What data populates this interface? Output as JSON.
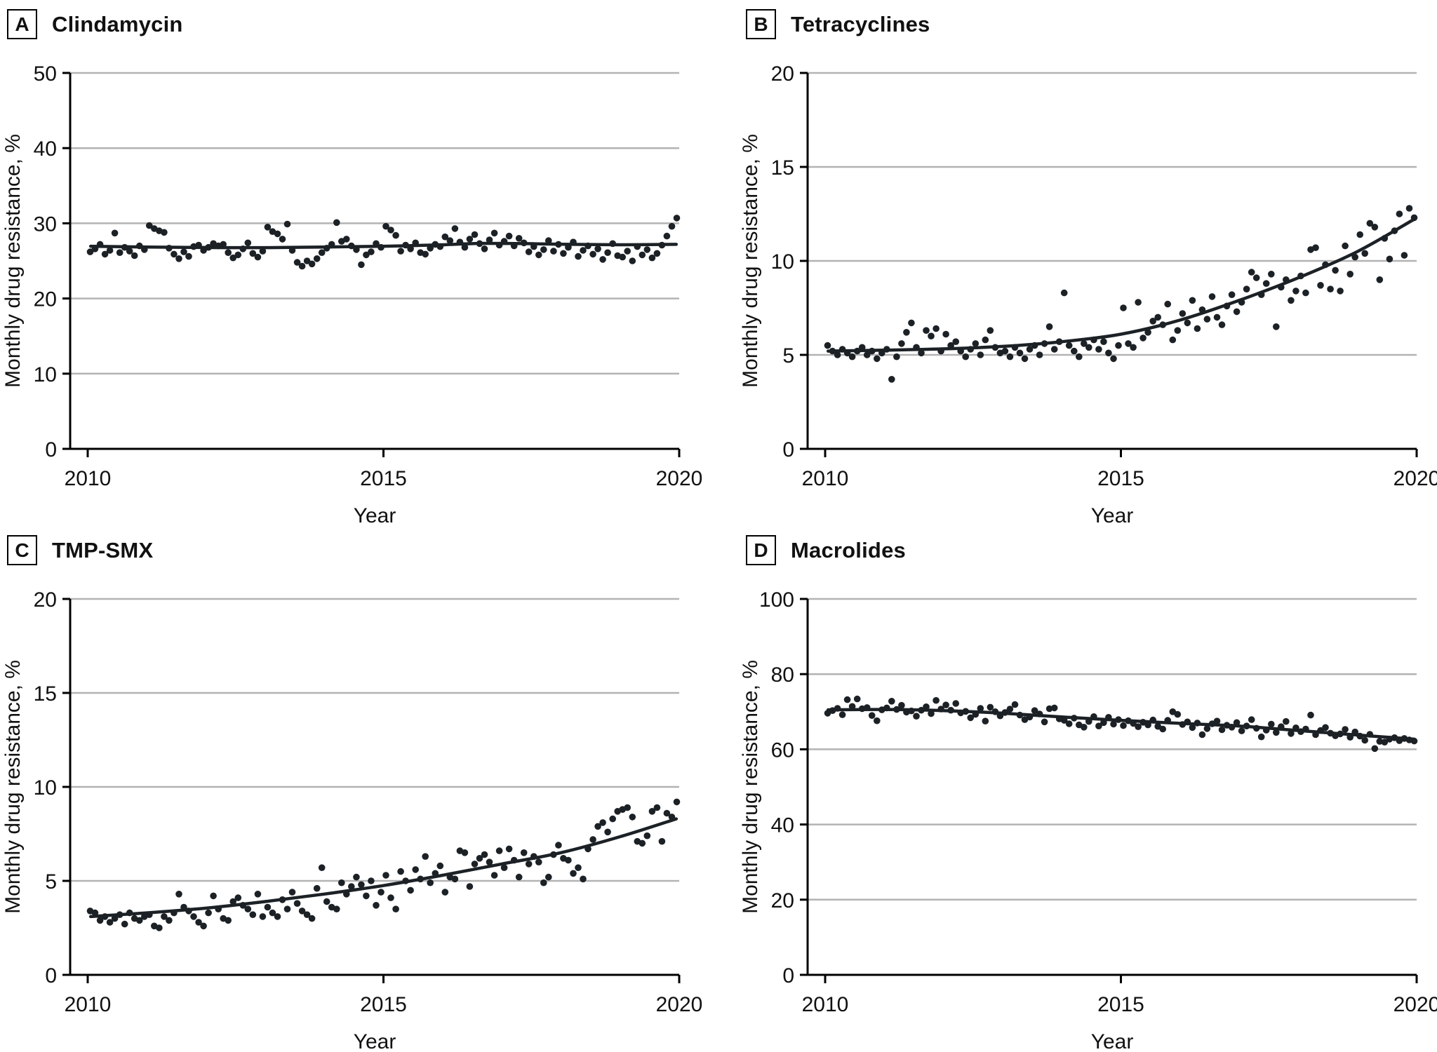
{
  "figure_xlabel": "Year",
  "colors": {
    "point": "#1c2126",
    "trend": "#1c2126",
    "grid": "#b3b3b3",
    "axis": "#000000",
    "text": "#111111"
  },
  "chart_data": [
    {
      "panel_label": "A",
      "title": "Clindamycin",
      "type": "scatter",
      "xlabel": "Year",
      "ylabel": "Monthly drug resistance, %",
      "xlim": [
        2010,
        2020
      ],
      "ylim": [
        0,
        50
      ],
      "yticks": [
        0,
        10,
        20,
        30,
        40,
        50
      ],
      "xticks": [
        2010,
        2015,
        2020
      ],
      "x_start": 2010,
      "x_step_months": 1,
      "values": [
        26.2,
        26.6,
        27.2,
        25.9,
        26.4,
        28.7,
        26.1,
        26.8,
        26.3,
        25.7,
        27.0,
        26.5,
        29.7,
        29.3,
        29.0,
        28.8,
        26.7,
        25.9,
        25.3,
        26.2,
        25.6,
        26.9,
        27.1,
        26.4,
        26.8,
        27.3,
        27.0,
        27.2,
        26.1,
        25.4,
        25.8,
        26.6,
        27.4,
        26.0,
        25.5,
        26.3,
        29.5,
        28.9,
        28.6,
        27.9,
        29.9,
        26.4,
        24.8,
        24.3,
        25.0,
        24.6,
        25.3,
        26.1,
        26.7,
        27.2,
        30.1,
        27.6,
        27.9,
        27.0,
        26.5,
        24.5,
        25.8,
        26.2,
        27.3,
        26.8,
        29.6,
        29.1,
        28.4,
        26.3,
        27.1,
        26.6,
        27.4,
        26.1,
        25.9,
        26.7,
        27.2,
        26.9,
        28.2,
        27.7,
        29.3,
        27.5,
        26.8,
        27.9,
        28.5,
        27.3,
        26.6,
        27.8,
        28.7,
        27.1,
        27.6,
        28.3,
        27.0,
        28.0,
        27.4,
        26.2,
        26.9,
        25.8,
        26.5,
        27.7,
        26.3,
        27.2,
        26.0,
        26.8,
        27.5,
        25.6,
        26.4,
        27.0,
        25.9,
        26.6,
        25.2,
        26.1,
        27.3,
        25.7,
        25.5,
        26.3,
        25.0,
        26.9,
        25.8,
        26.5,
        25.4,
        26.0,
        27.1,
        28.3,
        29.6,
        30.7
      ],
      "trend": [
        [
          2010.05,
          26.95
        ],
        [
          2011,
          26.85
        ],
        [
          2012,
          26.78
        ],
        [
          2013,
          26.76
        ],
        [
          2014,
          26.85
        ],
        [
          2015,
          26.95
        ],
        [
          2016,
          27.15
        ],
        [
          2016.6,
          27.32
        ],
        [
          2017.3,
          27.3
        ],
        [
          2018,
          27.22
        ],
        [
          2019,
          27.15
        ],
        [
          2019.95,
          27.2
        ]
      ]
    },
    {
      "panel_label": "B",
      "title": "Tetracyclines",
      "type": "scatter",
      "xlabel": "Year",
      "ylabel": "Monthly drug resistance, %",
      "xlim": [
        2010,
        2020
      ],
      "ylim": [
        0,
        20
      ],
      "yticks": [
        0,
        5,
        10,
        15,
        20
      ],
      "xticks": [
        2010,
        2015,
        2020
      ],
      "x_start": 2010,
      "x_step_months": 1,
      "values": [
        5.5,
        5.2,
        5.0,
        5.3,
        5.1,
        4.9,
        5.2,
        5.4,
        5.0,
        5.2,
        4.8,
        5.1,
        5.3,
        3.7,
        4.9,
        5.6,
        6.2,
        6.7,
        5.4,
        5.1,
        6.3,
        6.0,
        6.4,
        5.2,
        6.1,
        5.5,
        5.7,
        5.2,
        4.9,
        5.3,
        5.6,
        5.0,
        5.8,
        6.3,
        5.4,
        5.1,
        5.2,
        4.9,
        5.4,
        5.1,
        4.8,
        5.3,
        5.5,
        5.0,
        5.6,
        6.5,
        5.3,
        5.7,
        8.3,
        5.5,
        5.2,
        4.9,
        5.6,
        5.4,
        5.8,
        5.3,
        5.7,
        5.1,
        4.8,
        5.5,
        7.5,
        5.6,
        5.4,
        7.8,
        5.9,
        6.2,
        6.8,
        7.0,
        6.6,
        7.7,
        5.8,
        6.3,
        7.2,
        6.7,
        7.9,
        6.4,
        7.4,
        6.9,
        8.1,
        7.0,
        6.6,
        7.6,
        8.2,
        7.3,
        7.8,
        8.5,
        9.4,
        9.1,
        8.2,
        8.8,
        9.3,
        6.5,
        8.6,
        9.0,
        7.9,
        8.4,
        9.2,
        8.3,
        10.6,
        10.7,
        8.7,
        9.8,
        8.5,
        9.5,
        8.4,
        10.8,
        9.3,
        10.2,
        11.4,
        10.4,
        12.0,
        11.8,
        9.0,
        11.2,
        10.1,
        11.6,
        12.5,
        10.3,
        12.8,
        12.3
      ],
      "trend": [
        [
          2010.05,
          5.2
        ],
        [
          2011,
          5.25
        ],
        [
          2012,
          5.32
        ],
        [
          2013,
          5.45
        ],
        [
          2014,
          5.7
        ],
        [
          2015,
          6.1
        ],
        [
          2016,
          6.85
        ],
        [
          2017,
          7.9
        ],
        [
          2018,
          9.1
        ],
        [
          2019,
          10.5
        ],
        [
          2019.95,
          12.2
        ]
      ]
    },
    {
      "panel_label": "C",
      "title": "TMP-SMX",
      "type": "scatter",
      "xlabel": "Year",
      "ylabel": "Monthly drug resistance, %",
      "xlim": [
        2010,
        2020
      ],
      "ylim": [
        0,
        20
      ],
      "yticks": [
        0,
        5,
        10,
        15,
        20
      ],
      "xticks": [
        2010,
        2015,
        2020
      ],
      "x_start": 2010,
      "x_step_months": 1,
      "values": [
        3.4,
        3.3,
        2.9,
        3.1,
        2.8,
        3.0,
        3.2,
        2.7,
        3.3,
        3.0,
        2.9,
        3.1,
        3.2,
        2.6,
        2.5,
        3.1,
        2.9,
        3.3,
        4.3,
        3.6,
        3.4,
        3.1,
        2.8,
        2.6,
        3.3,
        4.2,
        3.5,
        3.0,
        2.9,
        3.9,
        4.1,
        3.7,
        3.5,
        3.2,
        4.3,
        3.1,
        3.6,
        3.3,
        3.1,
        4.0,
        3.5,
        4.4,
        3.8,
        3.4,
        3.2,
        3.0,
        4.6,
        5.7,
        3.9,
        3.6,
        3.5,
        4.9,
        4.3,
        4.7,
        5.2,
        4.8,
        4.2,
        5.0,
        3.7,
        4.4,
        5.3,
        4.1,
        3.5,
        5.5,
        5.0,
        4.5,
        5.6,
        5.1,
        6.3,
        4.9,
        5.4,
        5.8,
        4.4,
        5.2,
        5.1,
        6.6,
        6.5,
        4.7,
        5.9,
        6.2,
        6.4,
        6.0,
        5.3,
        6.6,
        5.7,
        6.7,
        6.1,
        5.2,
        6.5,
        5.9,
        6.3,
        6.0,
        4.9,
        5.2,
        6.4,
        6.9,
        6.2,
        6.1,
        5.4,
        5.7,
        5.1,
        6.7,
        7.2,
        7.9,
        8.1,
        7.6,
        8.3,
        8.7,
        8.8,
        8.9,
        8.4,
        7.1,
        7.0,
        7.4,
        8.7,
        8.9,
        7.1,
        8.6,
        8.4,
        9.2
      ],
      "trend": [
        [
          2010.05,
          3.1
        ],
        [
          2011,
          3.3
        ],
        [
          2012,
          3.55
        ],
        [
          2013,
          3.9
        ],
        [
          2014,
          4.3
        ],
        [
          2015,
          4.75
        ],
        [
          2016,
          5.3
        ],
        [
          2017,
          5.9
        ],
        [
          2018,
          6.5
        ],
        [
          2019,
          7.35
        ],
        [
          2019.95,
          8.3
        ]
      ]
    },
    {
      "panel_label": "D",
      "title": "Macrolides",
      "type": "scatter",
      "xlabel": "Year",
      "ylabel": "Monthly drug resistance, %",
      "xlim": [
        2010,
        2020
      ],
      "ylim": [
        0,
        100
      ],
      "yticks": [
        0,
        20,
        40,
        60,
        80,
        100
      ],
      "xticks": [
        2010,
        2015,
        2020
      ],
      "x_start": 2010,
      "x_step_months": 1,
      "values": [
        69.6,
        70.3,
        70.9,
        69.2,
        73.2,
        71.4,
        73.4,
        70.8,
        71.1,
        69.0,
        67.6,
        70.5,
        71.0,
        72.8,
        70.6,
        71.7,
        69.9,
        70.2,
        68.8,
        70.4,
        71.3,
        69.5,
        73.0,
        70.7,
        71.8,
        70.4,
        72.2,
        69.7,
        70.1,
        68.4,
        69.3,
        70.9,
        67.5,
        71.2,
        70.0,
        68.9,
        69.8,
        70.7,
        71.9,
        69.1,
        67.9,
        68.6,
        70.3,
        69.4,
        67.3,
        70.8,
        71.0,
        68.1,
        67.7,
        66.8,
        68.3,
        66.5,
        65.9,
        67.4,
        68.7,
        66.2,
        67.1,
        68.5,
        66.7,
        67.9,
        66.3,
        67.6,
        66.9,
        66.0,
        67.2,
        66.5,
        67.8,
        66.1,
        65.4,
        67.7,
        70.0,
        69.3,
        66.6,
        67.3,
        65.8,
        67.0,
        63.9,
        65.5,
        66.8,
        67.5,
        65.2,
        66.4,
        65.9,
        67.1,
        64.9,
        66.2,
        67.9,
        65.6,
        63.3,
        65.1,
        66.7,
        64.5,
        66.0,
        67.4,
        64.2,
        65.7,
        64.7,
        65.4,
        69.1,
        63.9,
        65.0,
        65.8,
        64.3,
        63.6,
        64.1,
        65.3,
        63.2,
        64.6,
        63.5,
        62.4,
        64.0,
        60.2,
        62.1,
        61.9,
        62.7,
        63.1,
        62.3,
        62.9,
        62.5,
        62.2
      ],
      "trend": [
        [
          2010.05,
          70.5
        ],
        [
          2011,
          70.6
        ],
        [
          2012,
          70.3
        ],
        [
          2013,
          69.6
        ],
        [
          2014,
          68.6
        ],
        [
          2015,
          67.7
        ],
        [
          2016,
          66.9
        ],
        [
          2017,
          66.2
        ],
        [
          2018,
          65.0
        ],
        [
          2019,
          63.8
        ],
        [
          2019.95,
          62.7
        ]
      ]
    }
  ]
}
